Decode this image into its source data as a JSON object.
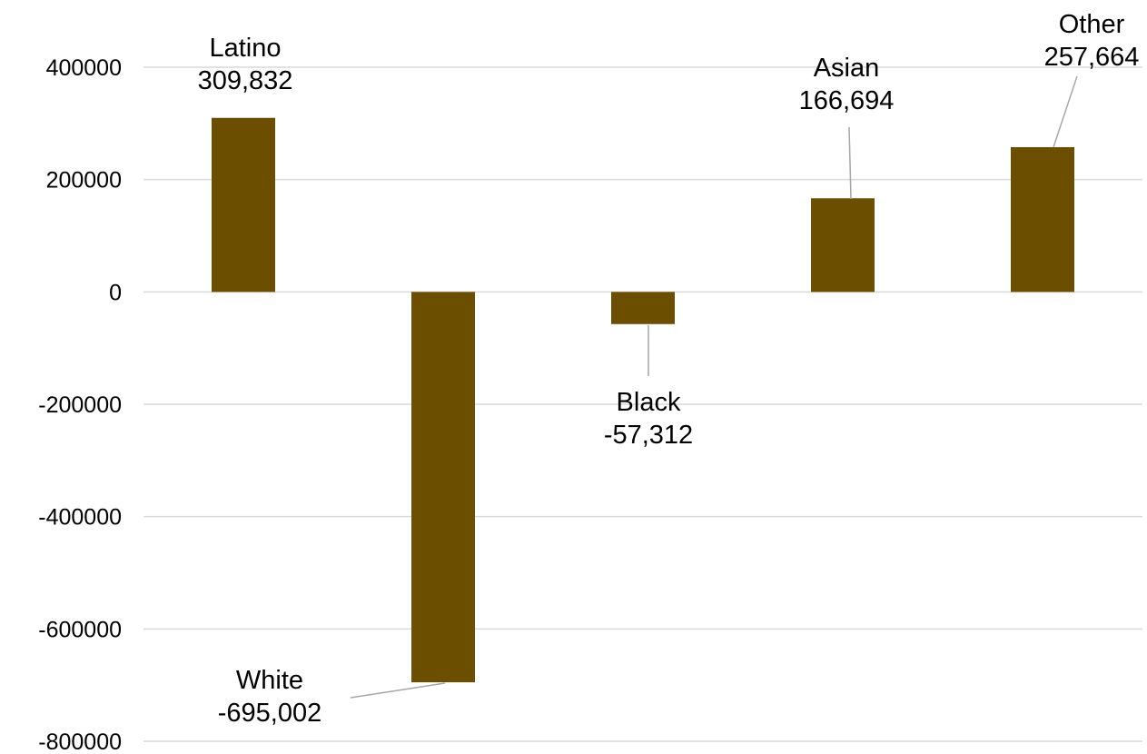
{
  "chart_data": {
    "type": "bar",
    "categories": [
      "Latino",
      "White",
      "Black",
      "Asian",
      "Other"
    ],
    "values": [
      309832,
      -695002,
      -57312,
      166694,
      257664
    ],
    "data_labels": [
      "309,832",
      "-695,002",
      "-57,312",
      "166,694",
      "257,664"
    ],
    "y_ticks": [
      "400000",
      "200000",
      "0",
      "-200000",
      "-400000",
      "-600000",
      "-800000"
    ],
    "y_tick_values": [
      400000,
      200000,
      0,
      -200000,
      -400000,
      -600000,
      -800000
    ],
    "ylim": [
      -800000,
      400000
    ],
    "grid": true,
    "legend": "none",
    "bar_color": "#6b4e00",
    "title": "",
    "xlabel": "",
    "ylabel": ""
  }
}
